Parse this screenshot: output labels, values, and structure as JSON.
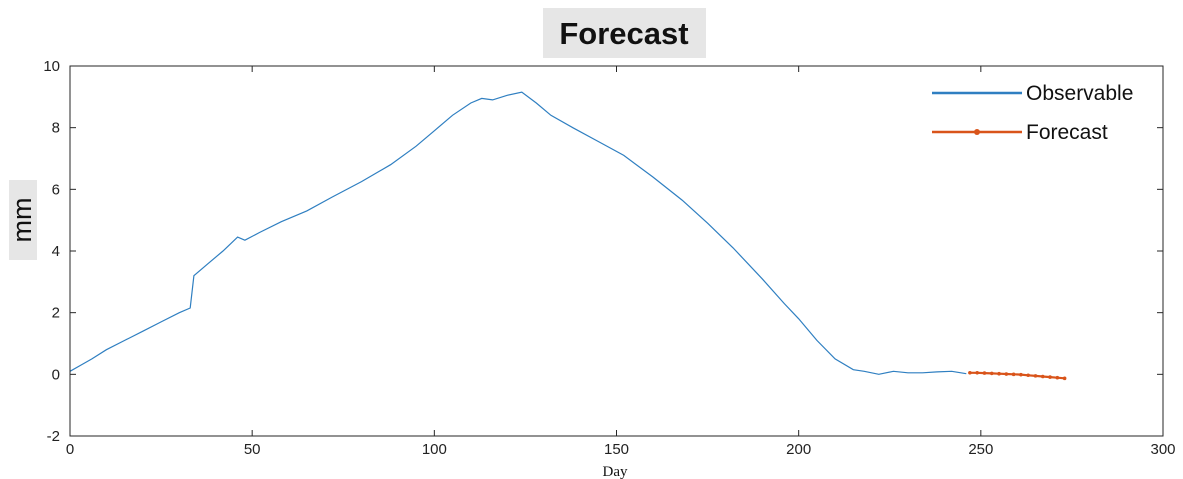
{
  "chart_data": {
    "type": "line",
    "title": "Forecast",
    "xlabel": "Day",
    "ylabel": "mm",
    "xlim": [
      0,
      300
    ],
    "ylim": [
      -2,
      10
    ],
    "xticks": [
      "0",
      "50",
      "100",
      "150",
      "200",
      "250",
      "300"
    ],
    "yticks": [
      "-2",
      "0",
      "2",
      "4",
      "6",
      "8",
      "10"
    ],
    "grid": false,
    "legend_position": "top-right",
    "colors": {
      "observable": "#2f7fc1",
      "forecast": "#d9541a"
    },
    "series": [
      {
        "name": "Observable",
        "x": [
          0,
          3,
          6,
          10,
          15,
          20,
          25,
          30,
          33,
          34,
          38,
          42,
          46,
          48,
          52,
          58,
          65,
          72,
          80,
          88,
          95,
          100,
          105,
          110,
          113,
          116,
          120,
          124,
          128,
          132,
          138,
          145,
          152,
          160,
          168,
          175,
          182,
          190,
          196,
          200,
          205,
          210,
          215,
          218,
          222,
          226,
          230,
          234,
          238,
          242,
          246
        ],
        "y": [
          0.1,
          0.3,
          0.5,
          0.8,
          1.1,
          1.4,
          1.7,
          2.0,
          2.15,
          3.2,
          3.6,
          4.0,
          4.45,
          4.35,
          4.6,
          4.95,
          5.3,
          5.75,
          6.25,
          6.8,
          7.4,
          7.9,
          8.4,
          8.8,
          8.95,
          8.9,
          9.05,
          9.15,
          8.8,
          8.4,
          8.0,
          7.55,
          7.1,
          6.4,
          5.65,
          4.9,
          4.1,
          3.1,
          2.3,
          1.8,
          1.1,
          0.5,
          0.15,
          0.1,
          0.0,
          0.1,
          0.05,
          0.05,
          0.08,
          0.1,
          0.02
        ]
      },
      {
        "name": "Forecast",
        "x": [
          247,
          249,
          251,
          253,
          255,
          257,
          259,
          261,
          263,
          265,
          267,
          269,
          271,
          273
        ],
        "y": [
          0.05,
          0.05,
          0.04,
          0.03,
          0.02,
          0.01,
          0.0,
          -0.01,
          -0.03,
          -0.05,
          -0.07,
          -0.09,
          -0.11,
          -0.13
        ]
      }
    ]
  }
}
